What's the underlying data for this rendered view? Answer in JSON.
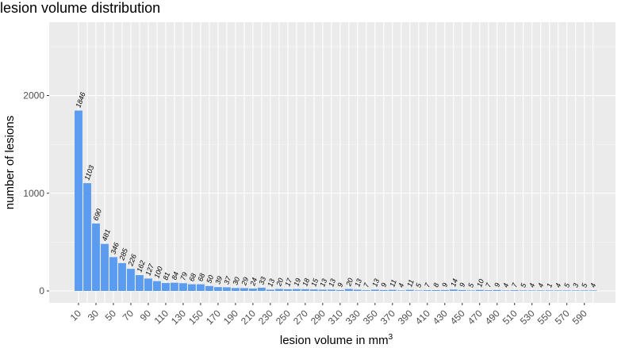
{
  "chart_data": {
    "type": "bar",
    "title": "lesion volume distribution",
    "xlabel": "lesion volume in mm",
    "xlabel_superscript": "3",
    "ylabel": "number of lesions",
    "ylim": [
      0,
      2700
    ],
    "y_ticks": [
      0,
      1000,
      2000
    ],
    "x_tick_labels": [
      "10",
      "30",
      "50",
      "70",
      "90",
      "110",
      "130",
      "150",
      "170",
      "190",
      "210",
      "230",
      "250",
      "270",
      "290",
      "310",
      "330",
      "350",
      "370",
      "390",
      "410",
      "430",
      "450",
      "470",
      "490",
      "510",
      "530",
      "550",
      "570",
      "590"
    ],
    "grid": true,
    "bar_color": "#5b9cf0",
    "panel_color": "#ebebeb",
    "categories": [
      "10",
      "20",
      "30",
      "40",
      "50",
      "60",
      "70",
      "80",
      "90",
      "100",
      "110",
      "120",
      "130",
      "140",
      "150",
      "160",
      "170",
      "180",
      "190",
      "200",
      "210",
      "220",
      "230",
      "240",
      "250",
      "260",
      "270",
      "280",
      "290",
      "300",
      "310",
      "320",
      "330",
      "340",
      "350",
      "360",
      "370",
      "380",
      "390",
      "400",
      "410",
      "420",
      "430",
      "440",
      "450",
      "460",
      "470",
      "480",
      "490",
      "500",
      "510",
      "520",
      "530",
      "540",
      "550",
      "560",
      "570",
      "580",
      "590",
      "600"
    ],
    "values": [
      1846,
      1103,
      690,
      481,
      346,
      285,
      226,
      162,
      127,
      100,
      81,
      84,
      79,
      68,
      68,
      50,
      39,
      37,
      30,
      29,
      24,
      33,
      13,
      20,
      17,
      19,
      18,
      15,
      13,
      13,
      9,
      20,
      13,
      7,
      13,
      9,
      11,
      4,
      11,
      5,
      7,
      8,
      9,
      14,
      9,
      5,
      10,
      7,
      9,
      4,
      7,
      5,
      4,
      4,
      1,
      4,
      5,
      3,
      5,
      4
    ]
  }
}
